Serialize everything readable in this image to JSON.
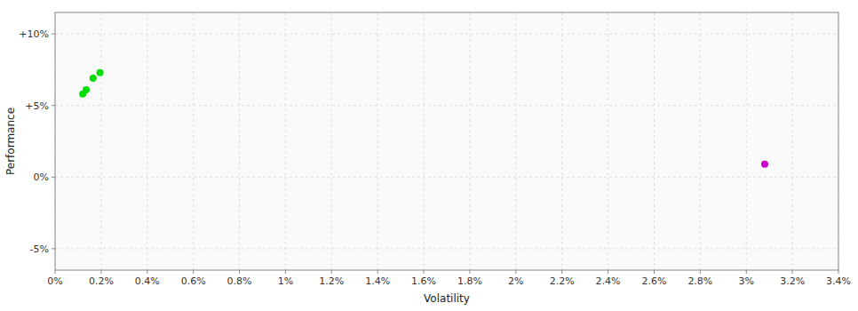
{
  "chart_data": {
    "type": "scatter",
    "xlabel": "Volatility",
    "ylabel": "Performance",
    "xlim": [
      0,
      0.034
    ],
    "ylim": [
      -0.065,
      0.115
    ],
    "xticks": [
      {
        "value": 0,
        "label": "0%"
      },
      {
        "value": 0.002,
        "label": "0.2%"
      },
      {
        "value": 0.004,
        "label": "0.4%"
      },
      {
        "value": 0.006,
        "label": "0.6%"
      },
      {
        "value": 0.008,
        "label": "0.8%"
      },
      {
        "value": 0.01,
        "label": "1%"
      },
      {
        "value": 0.012,
        "label": "1.2%"
      },
      {
        "value": 0.014,
        "label": "1.4%"
      },
      {
        "value": 0.016,
        "label": "1.6%"
      },
      {
        "value": 0.018,
        "label": "1.8%"
      },
      {
        "value": 0.02,
        "label": "2%"
      },
      {
        "value": 0.022,
        "label": "2.2%"
      },
      {
        "value": 0.024,
        "label": "2.4%"
      },
      {
        "value": 0.026,
        "label": "2.6%"
      },
      {
        "value": 0.028,
        "label": "2.8%"
      },
      {
        "value": 0.03,
        "label": "3%"
      },
      {
        "value": 0.032,
        "label": "3.2%"
      },
      {
        "value": 0.034,
        "label": "3.4%"
      }
    ],
    "yticks": [
      {
        "value": -0.05,
        "label": "-5%"
      },
      {
        "value": 0.0,
        "label": "0%"
      },
      {
        "value": 0.05,
        "label": "+5%"
      },
      {
        "value": 0.1,
        "label": "+10%"
      }
    ],
    "grid": true,
    "series": [
      {
        "color": "#00dd00",
        "marker": "circle",
        "x": [
          0.00195,
          0.00165,
          0.00135,
          0.0012
        ],
        "values": [
          0.073,
          0.069,
          0.061,
          0.058
        ]
      },
      {
        "color": "#cc00cc",
        "marker": "circle",
        "x": [
          0.0308
        ],
        "values": [
          0.009
        ]
      }
    ]
  }
}
